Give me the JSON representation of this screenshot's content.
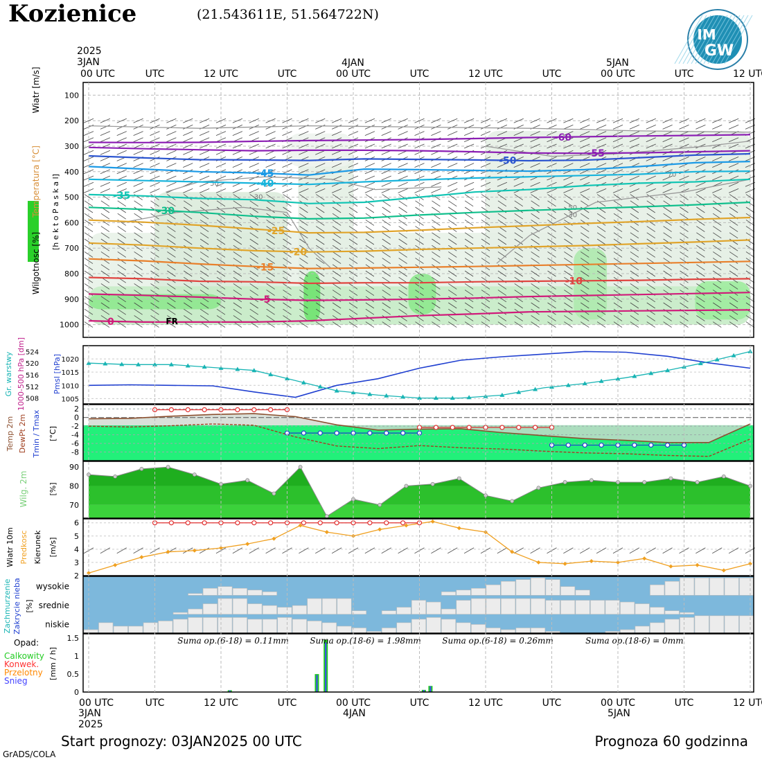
{
  "header": {
    "title": "Kozienice",
    "coords": "(21.543611E, 51.564722N)",
    "logo_text_top": "IM",
    "logo_text_bottom": "GW"
  },
  "footer": {
    "start": "Start prognozy: 03JAN2025 00 UTC",
    "horizon": "Prognoza 60 godzinna",
    "credit": "GrADS/COLA"
  },
  "time_axis": {
    "top_dates": [
      {
        "hour": 0,
        "lines": [
          "2025",
          "3JAN"
        ]
      },
      {
        "hour": 24,
        "lines": [
          "4JAN"
        ]
      },
      {
        "hour": 48,
        "lines": [
          "5JAN"
        ]
      }
    ],
    "bottom_dates": [
      {
        "hour": 0,
        "lines": [
          "3JAN",
          "2025"
        ]
      },
      {
        "hour": 24,
        "lines": [
          "4JAN"
        ]
      },
      {
        "hour": 48,
        "lines": [
          "5JAN"
        ]
      }
    ],
    "top_ticks": [
      {
        "hour": 0,
        "label": "00 UTC"
      },
      {
        "hour": 6,
        "label": "UTC"
      },
      {
        "hour": 12,
        "label": "12 UTC"
      },
      {
        "hour": 18,
        "label": "UTC"
      },
      {
        "hour": 24,
        "label": "00 UTC"
      },
      {
        "hour": 30,
        "label": "UTC"
      },
      {
        "hour": 36,
        "label": "12 UTC"
      },
      {
        "hour": 42,
        "label": "UTC"
      },
      {
        "hour": 48,
        "label": "00 UTC"
      },
      {
        "hour": 54,
        "label": "UTC"
      },
      {
        "hour": 60,
        "label": "12 UTC"
      }
    ],
    "bottom_ticks": [
      {
        "hour": 0,
        "label": "00 UTC"
      },
      {
        "hour": 6,
        "label": "UTC"
      },
      {
        "hour": 12,
        "label": "12 UTC"
      },
      {
        "hour": 18,
        "label": "UTC"
      },
      {
        "hour": 24,
        "label": "00 UTC"
      },
      {
        "hour": 30,
        "label": "UTC"
      },
      {
        "hour": 36,
        "label": "12 UTC"
      },
      {
        "hour": 42,
        "label": "UTC"
      },
      {
        "hour": 48,
        "label": "00 UTC"
      },
      {
        "hour": 54,
        "label": "UTC"
      },
      {
        "hour": 60,
        "label": "12 UTC"
      }
    ]
  },
  "chart_data": [
    {
      "type": "area",
      "panel": "upper-air",
      "ylabel_side": [
        "Wiatr [m/s]",
        "Temperatura [°C]",
        "Wilgotnosc [%]"
      ],
      "ylabel_inner": "[h e k t o P a s k a l]",
      "yticks": [
        100,
        200,
        300,
        400,
        500,
        600,
        700,
        800,
        900,
        1000
      ],
      "ylim": [
        1050,
        50
      ],
      "temperature_isotherms": [
        {
          "label": "-60",
          "color": "#8c1fb4",
          "p": [
            285,
            286,
            285,
            281,
            278,
            276,
            274,
            270,
            266,
            263,
            260,
            258,
            255
          ]
        },
        {
          "label": "-55",
          "color": "#8c1fb4",
          "p": [
            305,
            310,
            314,
            318,
            316,
            316,
            318,
            322,
            327,
            328,
            326,
            322,
            318
          ]
        },
        {
          "label": "-50",
          "color": "#2b55d0",
          "p": [
            338,
            346,
            353,
            354,
            356,
            350,
            352,
            354,
            357,
            355,
            345,
            335,
            330
          ]
        },
        {
          "label": "-45",
          "color": "#1c9ae6",
          "p": [
            380,
            390,
            400,
            405,
            413,
            390,
            392,
            395,
            398,
            392,
            380,
            365,
            360
          ]
        },
        {
          "label": "-40",
          "color": "#18b4dc",
          "p": [
            430,
            435,
            440,
            445,
            450,
            440,
            432,
            425,
            420,
            415,
            410,
            400,
            398
          ]
        },
        {
          "label": "-35",
          "color": "#12c5b4",
          "p": [
            490,
            495,
            505,
            510,
            525,
            520,
            500,
            480,
            470,
            455,
            445,
            440,
            430
          ]
        },
        {
          "label": "-30",
          "color": "#10bf8c",
          "p": [
            540,
            548,
            560,
            575,
            585,
            582,
            570,
            560,
            552,
            545,
            538,
            530,
            520
          ]
        },
        {
          "label": "-25",
          "color": "#e0a42a",
          "p": [
            590,
            598,
            610,
            625,
            640,
            638,
            630,
            620,
            612,
            603,
            596,
            587,
            580
          ]
        },
        {
          "label": "-20",
          "color": "#e0a42a",
          "p": [
            680,
            688,
            700,
            710,
            715,
            712,
            705,
            700,
            695,
            690,
            683,
            676,
            668
          ]
        },
        {
          "label": "-15",
          "color": "#e87f2a",
          "p": [
            742,
            750,
            762,
            772,
            780,
            778,
            775,
            772,
            768,
            764,
            760,
            756,
            752
          ]
        },
        {
          "label": "-10",
          "color": "#e04440",
          "p": [
            815,
            820,
            830,
            832,
            838,
            836,
            836,
            832,
            830,
            828,
            826,
            822,
            820
          ]
        },
        {
          "label": "-5",
          "color": "#d01a7a",
          "p": [
            880,
            885,
            892,
            900,
            905,
            903,
            900,
            896,
            890,
            886,
            882,
            878,
            874
          ]
        },
        {
          "label": "0",
          "color": "#d01a7a",
          "p": [
            985,
            990,
            990,
            990,
            985,
            975,
            965,
            958,
            950,
            948,
            946,
            944,
            942
          ]
        }
      ],
      "humidity_contours": [
        "50",
        "70",
        "30"
      ],
      "surface_label": "FR"
    },
    {
      "type": "line",
      "panel": "pressure",
      "ylabel": [
        "Gr. warstwy",
        "1000-500 hPa [dm]",
        "Pmsl [hPa]"
      ],
      "yticks_left": [
        508,
        512,
        516,
        520,
        524
      ],
      "yticks_right": [
        1005,
        1010,
        1015,
        1020
      ],
      "ylim_left": [
        506,
        526
      ],
      "ylim_right": [
        1003,
        1025
      ],
      "series": [
        {
          "color": "#1f3fd0",
          "values": [
            1010.0,
            1010.2,
            1010.0,
            1009.8,
            1007.5,
            1005.5,
            1010.0,
            1012.5,
            1016.5,
            1019.5,
            1020.8,
            1021.8,
            1022.8,
            1022.5,
            1021.0,
            1018.5,
            1016.5
          ]
        },
        {
          "color": "#18b4b4",
          "values": [
            520.0,
            519.5,
            519.5,
            518.5,
            517.5,
            514.0,
            510.5,
            509.0,
            508.0,
            508.0,
            509.0,
            511.5,
            513.0,
            515.0,
            517.5,
            520.5,
            524.0
          ]
        }
      ]
    },
    {
      "type": "line",
      "panel": "temperature",
      "ylabel": [
        "Temp 2m",
        "DewPt 2m",
        "Tmin / Tmax"
      ],
      "unit": "[°C]",
      "yticks": [
        2,
        0,
        -2,
        -4,
        -6,
        -8
      ],
      "ylim": [
        -10,
        3
      ],
      "series": [
        {
          "color": "#8c5030",
          "values": [
            -0.3,
            -0.2,
            0.3,
            0.7,
            0.9,
            0.2,
            -1.7,
            -2.9,
            -2.7,
            -2.6,
            -3.5,
            -4.2,
            -4.9,
            -5.3,
            -5.8,
            -5.8,
            -1.5
          ]
        },
        {
          "color": "#a04020",
          "values": [
            -2.0,
            -2.2,
            -1.9,
            -1.5,
            -1.8,
            -4.5,
            -6.6,
            -7.2,
            -6.5,
            -7.0,
            -7.3,
            -7.8,
            -8.2,
            -8.4,
            -8.8,
            -9.0,
            -5.0
          ]
        },
        {
          "color": "#e03030",
          "values": [
            1.8,
            1.8,
            1.8,
            1.8,
            1.8,
            -2.3,
            -2.3,
            -2.3,
            -2.3,
            -2.3
          ]
        },
        {
          "color": "#2040d0",
          "values": [
            -3.6,
            -3.6,
            -3.6,
            -3.6,
            -3.6,
            -6.4,
            -6.4,
            -6.4,
            -6.4,
            -6.4
          ]
        }
      ]
    },
    {
      "type": "area",
      "panel": "humidity",
      "ylabel": "Wilg. 2m",
      "unit": "[%]",
      "yticks": [
        70,
        80,
        90
      ],
      "ylim": [
        63,
        93
      ],
      "values": [
        86,
        85,
        89,
        90,
        86,
        81,
        83,
        76,
        90,
        64,
        73,
        70,
        80,
        81,
        84,
        75,
        72,
        79,
        82,
        83,
        82,
        82,
        84,
        82,
        85,
        80
      ]
    },
    {
      "type": "line",
      "panel": "wind",
      "ylabel": [
        "Wiatr 10m",
        "Predkosc",
        "Kierunek"
      ],
      "unit": "[m/s]",
      "yticks": [
        2,
        3,
        4,
        5,
        6
      ],
      "ylim": [
        2,
        6.3
      ],
      "series": [
        {
          "name": "Predkosc",
          "color": "#f0a020",
          "values": [
            2.2,
            2.8,
            3.4,
            3.8,
            3.9,
            4.1,
            4.4,
            4.8,
            5.8,
            5.3,
            5.0,
            5.5,
            5.8,
            6.1,
            5.6,
            5.3,
            3.8,
            3.0,
            2.9,
            3.1,
            3.0,
            3.3,
            2.7,
            2.8,
            2.4,
            2.9
          ]
        },
        {
          "name": "Max",
          "color": "#e03030",
          "values": [
            6.0,
            6.0,
            6.0,
            6.0,
            6.0,
            6.0
          ]
        }
      ]
    },
    {
      "type": "bar",
      "panel": "clouds",
      "ylabel": [
        "Zachmurzenie",
        "Zakrycie nieba",
        "[%]"
      ],
      "rows": [
        "wysokie",
        "srednie",
        "niskie"
      ]
    },
    {
      "type": "bar",
      "panel": "precip",
      "ylabel_title": "Opad:",
      "legend": [
        {
          "label": "Calkowity",
          "color": "#22cc22"
        },
        {
          "label": "Konwek.",
          "color": "#ff3333"
        },
        {
          "label": "Przelotny",
          "color": "#ff8800"
        },
        {
          "label": "Snieg",
          "color": "#4444ff"
        }
      ],
      "unit": "[mm / h]",
      "yticks": [
        0,
        0.5,
        1,
        1.5
      ],
      "ylim": [
        0,
        1.62
      ],
      "sums": [
        {
          "hour": 9,
          "text": "Suma op.(6-18) = 0.11mm"
        },
        {
          "hour": 21,
          "text": "Suma op.(18-6) = 1.98mm"
        },
        {
          "hour": 33,
          "text": "Suma op.(6-18) = 0.26mm"
        },
        {
          "hour": 46,
          "text": "Suma op.(18-6) = 0mm"
        }
      ],
      "bars": [
        {
          "hour": 12.8,
          "value": 0.05
        },
        {
          "hour": 20.7,
          "value": 0.5
        },
        {
          "hour": 21.5,
          "value": 1.45
        },
        {
          "hour": 30.4,
          "value": 0.06
        },
        {
          "hour": 31.0,
          "value": 0.17
        }
      ]
    }
  ]
}
